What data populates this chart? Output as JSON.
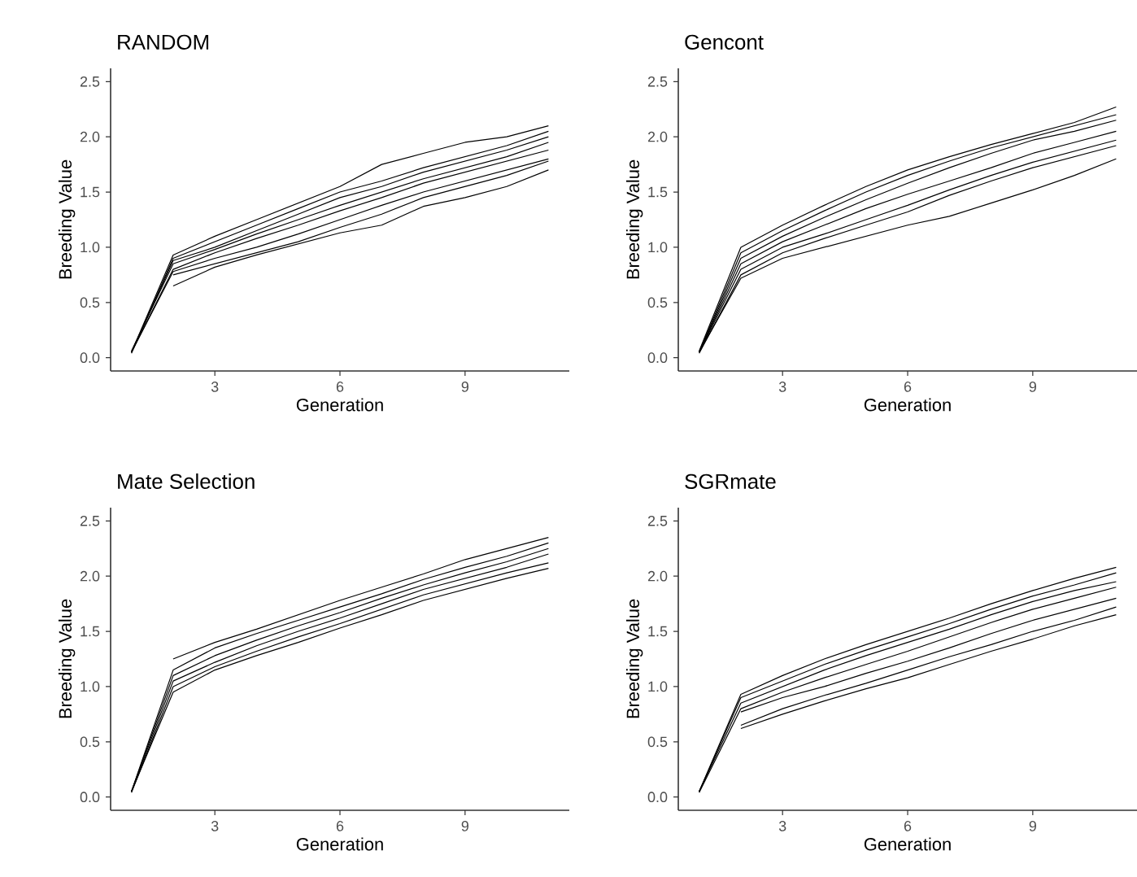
{
  "chart_data": [
    {
      "type": "line",
      "title": "RANDOM",
      "xlabel": "Generation",
      "ylabel": "Breeding Value",
      "x": [
        1,
        2,
        3,
        4,
        5,
        6,
        7,
        8,
        9,
        10,
        11
      ],
      "xlim": [
        0.5,
        11.5
      ],
      "ylim": [
        -0.12,
        2.62
      ],
      "xticks": [
        3,
        6,
        9
      ],
      "yticks": [
        {
          "value": 0,
          "label": "0.0"
        },
        {
          "value": 0.5,
          "label": "0.5"
        },
        {
          "value": 1,
          "label": "1.0"
        },
        {
          "value": 1.5,
          "label": "1.5"
        },
        {
          "value": 2,
          "label": "2.0"
        },
        {
          "value": 2.5,
          "label": "2.5"
        }
      ],
      "series": [
        {
          "color": "#000000",
          "values": [
            0.05,
            0.93,
            1.1,
            1.25,
            1.4,
            1.55,
            1.75,
            1.85,
            1.95,
            2.0,
            2.1
          ]
        },
        {
          "color": "#000000",
          "values": [
            0.04,
            0.9,
            1.05,
            1.2,
            1.35,
            1.5,
            1.6,
            1.72,
            1.82,
            1.92,
            2.05
          ]
        },
        {
          "color": "#000000",
          "values": [
            0.05,
            0.88,
            1.0,
            1.15,
            1.3,
            1.45,
            1.55,
            1.68,
            1.78,
            1.88,
            2.0
          ]
        },
        {
          "color": "#000000",
          "values": [
            0.06,
            0.85,
            0.98,
            1.12,
            1.25,
            1.38,
            1.5,
            1.62,
            1.72,
            1.82,
            1.95
          ]
        },
        {
          "color": "#000000",
          "values": [
            0.05,
            0.8,
            0.95,
            1.08,
            1.2,
            1.33,
            1.45,
            1.58,
            1.68,
            1.78,
            1.88
          ]
        },
        {
          "color": "#000000",
          "values": [
            0.05,
            0.78,
            0.9,
            1.0,
            1.12,
            1.25,
            1.38,
            1.5,
            1.6,
            1.7,
            1.8
          ]
        },
        {
          "color": "#000000",
          "values": [
            null,
            0.75,
            0.85,
            0.95,
            1.05,
            1.18,
            1.3,
            1.45,
            1.55,
            1.65,
            1.78
          ]
        },
        {
          "color": "#000000",
          "values": [
            null,
            0.65,
            0.82,
            0.93,
            1.03,
            1.13,
            1.2,
            1.37,
            1.45,
            1.55,
            1.7
          ]
        }
      ]
    },
    {
      "type": "line",
      "title": "Gencont",
      "xlabel": "Generation",
      "ylabel": "Breeding Value",
      "x": [
        1,
        2,
        3,
        4,
        5,
        6,
        7,
        8,
        9,
        10,
        11
      ],
      "xlim": [
        0.5,
        11.5
      ],
      "ylim": [
        -0.12,
        2.62
      ],
      "xticks": [
        3,
        6,
        9
      ],
      "yticks": [
        {
          "value": 0,
          "label": "0.0"
        },
        {
          "value": 0.5,
          "label": "0.5"
        },
        {
          "value": 1,
          "label": "1.0"
        },
        {
          "value": 1.5,
          "label": "1.5"
        },
        {
          "value": 2,
          "label": "2.0"
        },
        {
          "value": 2.5,
          "label": "2.5"
        }
      ],
      "series": [
        {
          "color": "#000000",
          "values": [
            0.06,
            1.0,
            1.2,
            1.38,
            1.55,
            1.7,
            1.82,
            1.93,
            2.03,
            2.13,
            2.27
          ]
        },
        {
          "color": "#000000",
          "values": [
            0.05,
            0.95,
            1.15,
            1.33,
            1.5,
            1.65,
            1.78,
            1.9,
            2.0,
            2.1,
            2.2
          ]
        },
        {
          "color": "#000000",
          "values": [
            0.05,
            0.9,
            1.1,
            1.27,
            1.43,
            1.58,
            1.72,
            1.85,
            1.97,
            2.05,
            2.15
          ]
        },
        {
          "color": "#000000",
          "values": [
            0.05,
            0.85,
            1.05,
            1.2,
            1.35,
            1.48,
            1.6,
            1.72,
            1.85,
            1.95,
            2.05
          ]
        },
        {
          "color": "#000000",
          "values": [
            0.05,
            0.8,
            1.0,
            1.12,
            1.25,
            1.38,
            1.52,
            1.65,
            1.77,
            1.87,
            1.97
          ]
        },
        {
          "color": "#000000",
          "values": [
            0.04,
            0.75,
            0.95,
            1.08,
            1.2,
            1.32,
            1.47,
            1.6,
            1.72,
            1.82,
            1.92
          ]
        },
        {
          "color": "#000000",
          "values": [
            0.05,
            0.72,
            0.9,
            1.0,
            1.1,
            1.2,
            1.28,
            1.4,
            1.52,
            1.65,
            1.8
          ]
        }
      ]
    },
    {
      "type": "line",
      "title": "Mate Selection",
      "xlabel": "Generation",
      "ylabel": "Breeding Value",
      "x": [
        1,
        2,
        3,
        4,
        5,
        6,
        7,
        8,
        9,
        10,
        11
      ],
      "xlim": [
        0.5,
        11.5
      ],
      "ylim": [
        -0.12,
        2.62
      ],
      "xticks": [
        3,
        6,
        9
      ],
      "yticks": [
        {
          "value": 0,
          "label": "0.0"
        },
        {
          "value": 0.5,
          "label": "0.5"
        },
        {
          "value": 1,
          "label": "1.0"
        },
        {
          "value": 1.5,
          "label": "1.5"
        },
        {
          "value": 2,
          "label": "2.0"
        },
        {
          "value": 2.5,
          "label": "2.5"
        }
      ],
      "series": [
        {
          "color": "#000000",
          "values": [
            null,
            1.25,
            1.4,
            1.52,
            1.65,
            1.78,
            1.9,
            2.02,
            2.15,
            2.25,
            2.35
          ]
        },
        {
          "color": "#000000",
          "values": [
            0.05,
            1.15,
            1.35,
            1.48,
            1.6,
            1.72,
            1.84,
            1.97,
            2.08,
            2.18,
            2.3
          ]
        },
        {
          "color": "#000000",
          "values": [
            0.05,
            1.1,
            1.28,
            1.42,
            1.55,
            1.67,
            1.8,
            1.92,
            2.03,
            2.13,
            2.25
          ]
        },
        {
          "color": "#000000",
          "values": [
            0.05,
            1.05,
            1.22,
            1.37,
            1.5,
            1.62,
            1.75,
            1.88,
            1.98,
            2.08,
            2.2
          ]
        },
        {
          "color": "#000000",
          "values": [
            0.04,
            1.0,
            1.18,
            1.32,
            1.45,
            1.57,
            1.7,
            1.83,
            1.93,
            2.03,
            2.12
          ]
        },
        {
          "color": "#000000",
          "values": [
            0.05,
            0.95,
            1.15,
            1.28,
            1.4,
            1.53,
            1.65,
            1.78,
            1.88,
            1.98,
            2.07
          ]
        }
      ]
    },
    {
      "type": "line",
      "title": "SGRmate",
      "xlabel": "Generation",
      "ylabel": "Breeding Value",
      "x": [
        1,
        2,
        3,
        4,
        5,
        6,
        7,
        8,
        9,
        10,
        11
      ],
      "xlim": [
        0.5,
        11.5
      ],
      "ylim": [
        -0.12,
        2.62
      ],
      "xticks": [
        3,
        6,
        9
      ],
      "yticks": [
        {
          "value": 0,
          "label": "0.0"
        },
        {
          "value": 0.5,
          "label": "0.5"
        },
        {
          "value": 1,
          "label": "1.0"
        },
        {
          "value": 1.5,
          "label": "1.5"
        },
        {
          "value": 2,
          "label": "2.0"
        },
        {
          "value": 2.5,
          "label": "2.5"
        }
      ],
      "series": [
        {
          "color": "#000000",
          "values": [
            0.05,
            0.93,
            1.1,
            1.25,
            1.38,
            1.5,
            1.62,
            1.75,
            1.87,
            1.98,
            2.08
          ]
        },
        {
          "color": "#000000",
          "values": [
            0.05,
            0.9,
            1.05,
            1.2,
            1.33,
            1.45,
            1.57,
            1.7,
            1.82,
            1.92,
            2.03
          ]
        },
        {
          "color": "#000000",
          "values": [
            0.05,
            0.85,
            1.0,
            1.15,
            1.28,
            1.4,
            1.52,
            1.65,
            1.77,
            1.87,
            1.95
          ]
        },
        {
          "color": "#000000",
          "values": [
            0.04,
            0.8,
            0.95,
            1.08,
            1.2,
            1.32,
            1.45,
            1.58,
            1.7,
            1.8,
            1.9
          ]
        },
        {
          "color": "#000000",
          "values": [
            null,
            0.77,
            0.9,
            1.0,
            1.12,
            1.23,
            1.35,
            1.48,
            1.6,
            1.7,
            1.8
          ]
        },
        {
          "color": "#000000",
          "values": [
            null,
            0.65,
            0.8,
            0.92,
            1.03,
            1.15,
            1.27,
            1.38,
            1.5,
            1.6,
            1.72
          ]
        },
        {
          "color": "#000000",
          "values": [
            null,
            0.62,
            0.75,
            0.87,
            0.98,
            1.08,
            1.2,
            1.32,
            1.43,
            1.55,
            1.65
          ]
        }
      ]
    }
  ]
}
